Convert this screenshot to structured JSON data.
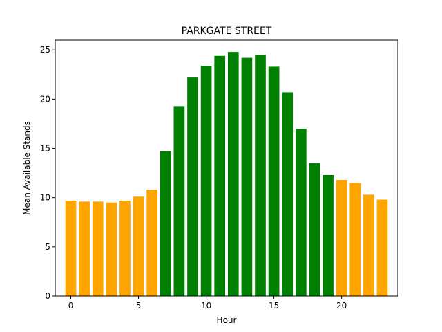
{
  "chart_data": {
    "type": "bar",
    "title": "PARKGATE STREET",
    "xlabel": "Hour",
    "ylabel": "Mean Available Stands",
    "x": [
      0,
      1,
      2,
      3,
      4,
      5,
      6,
      7,
      8,
      9,
      10,
      11,
      12,
      13,
      14,
      15,
      16,
      17,
      18,
      19,
      20,
      21,
      22,
      23
    ],
    "values": [
      9.7,
      9.6,
      9.6,
      9.5,
      9.7,
      10.1,
      10.8,
      14.7,
      19.3,
      22.2,
      23.4,
      24.4,
      24.8,
      24.2,
      24.5,
      23.3,
      20.7,
      17.0,
      13.5,
      12.3,
      11.8,
      11.5,
      10.3,
      9.8
    ],
    "colors": [
      "#FFA500",
      "#FFA500",
      "#FFA500",
      "#FFA500",
      "#FFA500",
      "#FFA500",
      "#FFA500",
      "#008000",
      "#008000",
      "#008000",
      "#008000",
      "#008000",
      "#008000",
      "#008000",
      "#008000",
      "#008000",
      "#008000",
      "#008000",
      "#008000",
      "#008000",
      "#FFA500",
      "#FFA500",
      "#FFA500",
      "#FFA500"
    ],
    "xlim": [
      -1.15,
      24.15
    ],
    "ylim": [
      0,
      26
    ],
    "xticks": [
      0,
      5,
      10,
      15,
      20
    ],
    "yticks": [
      0,
      5,
      10,
      15,
      20,
      25
    ],
    "grid": false,
    "legend": false
  }
}
